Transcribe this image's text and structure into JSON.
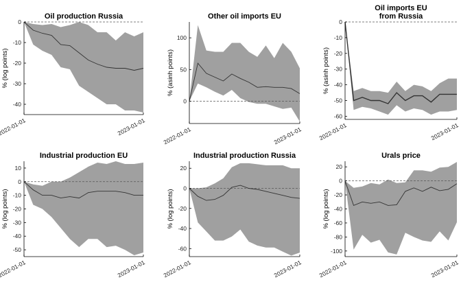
{
  "chart_data": [
    {
      "type": "area",
      "title": [
        "Oil production Russia"
      ],
      "ylabel": "% (log points)",
      "xlabel": "",
      "x_tick_labels": [
        "2022-01-01",
        "2023-01-01"
      ],
      "x_range": [
        0,
        13
      ],
      "ylim": [
        -45,
        0
      ],
      "yticks": [
        0,
        -10,
        -20,
        -30,
        -40
      ],
      "ytick_labels": [
        "0",
        "-10",
        "-20",
        "-30",
        "-40"
      ],
      "zero_line": 0,
      "x": [
        0,
        1,
        2,
        3,
        4,
        5,
        6,
        7,
        8,
        9,
        10,
        11,
        12,
        13
      ],
      "series": [
        {
          "role": "median",
          "values": [
            0,
            -4,
            -5.5,
            -6.5,
            -11,
            -11.5,
            -15,
            -18.5,
            -20.5,
            -22,
            -22.5,
            -22.5,
            -23.5,
            -22.5
          ]
        },
        {
          "role": "lower",
          "values": [
            0,
            -11,
            -14,
            -16,
            -22,
            -23,
            -31,
            -34,
            -37,
            -40,
            -40,
            -43,
            -43,
            -44
          ]
        },
        {
          "role": "upper",
          "values": [
            0,
            -1,
            -1.5,
            -1,
            -2.5,
            -1.5,
            0,
            -1.5,
            -5,
            -5,
            -9,
            -5,
            -7,
            -5
          ]
        }
      ]
    },
    {
      "type": "area",
      "title": [
        "Other oil imports EU"
      ],
      "ylabel": "% (asinh points)",
      "xlabel": "",
      "x_tick_labels": [
        "2022-01-01",
        "2023-01-01"
      ],
      "x_range": [
        0,
        13
      ],
      "ylim": [
        -35,
        125
      ],
      "yticks": [
        100,
        50,
        0
      ],
      "ytick_labels": [
        "100",
        "50",
        "0"
      ],
      "zero_line": 0,
      "x": [
        0,
        1,
        2,
        3,
        4,
        5,
        6,
        7,
        8,
        9,
        10,
        11,
        12,
        13
      ],
      "series": [
        {
          "role": "median",
          "values": [
            0,
            60,
            44,
            38,
            32,
            43,
            36,
            30,
            22,
            23,
            22,
            22,
            20,
            12
          ]
        },
        {
          "role": "lower",
          "values": [
            0,
            28,
            22,
            15,
            9,
            18,
            5,
            -1,
            -4,
            -4,
            -8,
            -12,
            -10,
            -32
          ]
        },
        {
          "role": "upper",
          "values": [
            0,
            120,
            80,
            78,
            78,
            92,
            92,
            78,
            70,
            88,
            68,
            92,
            78,
            52
          ]
        }
      ]
    },
    {
      "type": "area",
      "title": [
        "Oil imports EU",
        "from Russia"
      ],
      "ylabel": "% (asinh points)",
      "xlabel": "",
      "x_tick_labels": [
        "2022-01-01",
        "2023-01-01"
      ],
      "x_range": [
        0,
        13
      ],
      "ylim": [
        -62,
        0
      ],
      "yticks": [
        0,
        -10,
        -20,
        -30,
        -40,
        -50,
        -60
      ],
      "ytick_labels": [
        "0",
        "-10",
        "-20",
        "-30",
        "-40",
        "-50",
        "-60"
      ],
      "zero_line": 0,
      "x": [
        0,
        1,
        2,
        3,
        4,
        5,
        6,
        7,
        8,
        9,
        10,
        11,
        12,
        13
      ],
      "series": [
        {
          "role": "median",
          "values": [
            0,
            -50,
            -48,
            -50,
            -50,
            -52,
            -45,
            -50,
            -47,
            -47,
            -51,
            -46,
            -46,
            -46
          ]
        },
        {
          "role": "lower",
          "values": [
            0,
            -56,
            -54,
            -55,
            -57,
            -59,
            -53,
            -57,
            -55,
            -56,
            -59,
            -57,
            -57,
            -56
          ]
        },
        {
          "role": "upper",
          "values": [
            0,
            -44,
            -42,
            -44,
            -44,
            -45,
            -38,
            -44,
            -40,
            -41,
            -44,
            -39,
            -36,
            -36
          ]
        }
      ]
    },
    {
      "type": "area",
      "title": [
        "Industrial production EU"
      ],
      "ylabel": "% (log points)",
      "xlabel": "",
      "x_tick_labels": [
        "2022-01-01",
        "2023-01-01"
      ],
      "x_range": [
        0,
        13
      ],
      "ylim": [
        -55,
        15
      ],
      "yticks": [
        10,
        0,
        -10,
        -20,
        -30,
        -40,
        -50
      ],
      "ytick_labels": [
        "10",
        "0",
        "-10",
        "-20",
        "-30",
        "-40",
        "-50"
      ],
      "zero_line": 0,
      "x": [
        0,
        1,
        2,
        3,
        4,
        5,
        6,
        7,
        8,
        9,
        10,
        11,
        12,
        13
      ],
      "series": [
        {
          "role": "median",
          "values": [
            0,
            -6,
            -10,
            -10,
            -12,
            -11,
            -12,
            -8,
            -7,
            -7,
            -7,
            -8,
            -10,
            -10
          ]
        },
        {
          "role": "lower",
          "values": [
            0,
            -17,
            -20,
            -26,
            -34,
            -42,
            -48,
            -42,
            -42,
            -48,
            -47,
            -50,
            -54,
            -52
          ]
        },
        {
          "role": "upper",
          "values": [
            0,
            -2,
            -3,
            0,
            0,
            3,
            7,
            11,
            14,
            13,
            15,
            13,
            13,
            14
          ]
        }
      ]
    },
    {
      "type": "area",
      "title": [
        "Industrial production Russia"
      ],
      "ylabel": "% (log points)",
      "xlabel": "",
      "x_tick_labels": [
        "2022-01-01",
        "2023-01-01"
      ],
      "x_range": [
        0,
        13
      ],
      "ylim": [
        -68,
        27
      ],
      "yticks": [
        20,
        0,
        -20,
        -40,
        -60
      ],
      "ytick_labels": [
        "20",
        "0",
        "-20",
        "-40",
        "-60"
      ],
      "zero_line": 0,
      "x": [
        0,
        1,
        2,
        3,
        4,
        5,
        6,
        7,
        8,
        9,
        10,
        11,
        12,
        13
      ],
      "series": [
        {
          "role": "median",
          "values": [
            0,
            -8,
            -12,
            -11,
            -7,
            1,
            3,
            0,
            -1,
            -3,
            -5,
            -7,
            -9,
            -10
          ]
        },
        {
          "role": "lower",
          "values": [
            0,
            -34,
            -43,
            -52,
            -52,
            -48,
            -41,
            -53,
            -57,
            -59,
            -59,
            -63,
            -67,
            -64
          ]
        },
        {
          "role": "upper",
          "values": [
            0,
            0,
            1,
            5,
            10,
            21,
            25,
            25,
            24,
            23,
            23,
            23,
            20,
            20
          ]
        }
      ]
    },
    {
      "type": "area",
      "title": [
        "Urals price"
      ],
      "ylabel": "% (log points)",
      "xlabel": "",
      "x_tick_labels": [
        "2022-01-01",
        "2023-01-01"
      ],
      "x_range": [
        0,
        13
      ],
      "ylim": [
        -108,
        28
      ],
      "yticks": [
        20,
        0,
        -20,
        -40,
        -60,
        -80,
        -100
      ],
      "ytick_labels": [
        "20",
        "0",
        "-20",
        "-40",
        "-60",
        "-80",
        "-100"
      ],
      "zero_line": 0,
      "x": [
        0,
        1,
        2,
        3,
        4,
        5,
        6,
        7,
        8,
        9,
        10,
        11,
        12,
        13
      ],
      "series": [
        {
          "role": "median",
          "values": [
            0,
            -35,
            -30,
            -32,
            -30,
            -35,
            -34,
            -15,
            -10,
            -15,
            -9,
            -14,
            -12,
            -4
          ]
        },
        {
          "role": "lower",
          "values": [
            0,
            -98,
            -77,
            -88,
            -84,
            -102,
            -105,
            -74,
            -80,
            -85,
            -87,
            -72,
            -85,
            -59
          ]
        },
        {
          "role": "upper",
          "values": [
            0,
            -10,
            -8,
            -3,
            -5,
            2,
            -3,
            -2,
            15,
            15,
            13,
            19,
            20,
            27
          ]
        }
      ]
    }
  ]
}
